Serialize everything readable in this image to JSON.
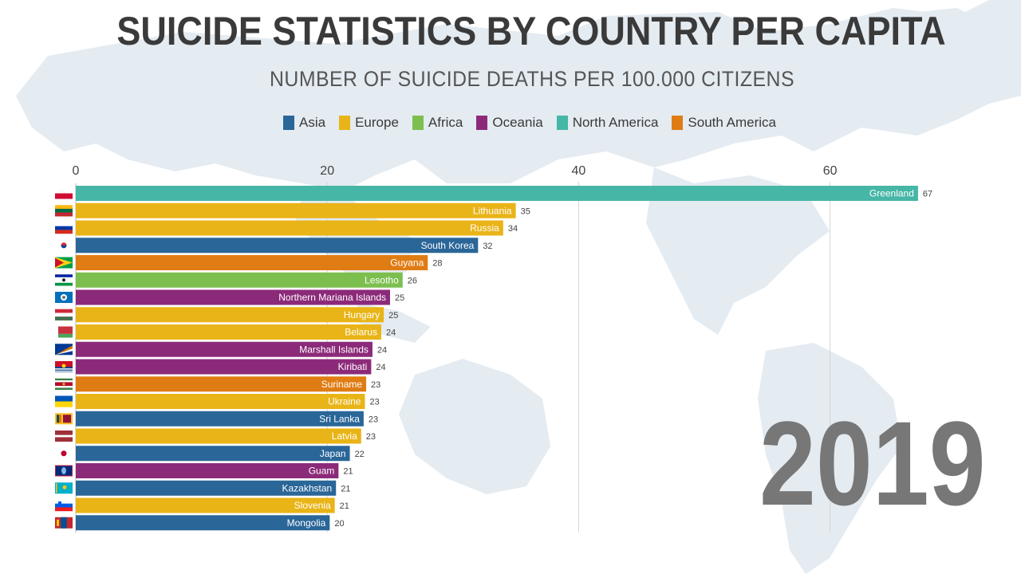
{
  "title": "SUICIDE STATISTICS BY COUNTRY PER CAPITA",
  "subtitle": "NUMBER OF SUICIDE DEATHS PER 100.000 CITIZENS",
  "year": "2019",
  "legend": [
    {
      "label": "Asia",
      "color": "#2a6698"
    },
    {
      "label": "Europe",
      "color": "#e9b417"
    },
    {
      "label": "Africa",
      "color": "#7cbf4f"
    },
    {
      "label": "Oceania",
      "color": "#8c2a7a"
    },
    {
      "label": "North America",
      "color": "#46b6a6"
    },
    {
      "label": "South America",
      "color": "#e07c14"
    }
  ],
  "chart_data": {
    "type": "bar",
    "orientation": "horizontal",
    "xlim": [
      0,
      67
    ],
    "x_ticks": [
      0,
      20,
      40,
      60
    ],
    "grid": true,
    "bars": [
      {
        "country": "Greenland",
        "value": 67,
        "label": "67",
        "region": "North America",
        "flag": "greenland"
      },
      {
        "country": "Lithuania",
        "value": 35,
        "label": "35",
        "region": "Europe",
        "flag": "lithuania"
      },
      {
        "country": "Russia",
        "value": 34,
        "label": "34",
        "region": "Europe",
        "flag": "russia"
      },
      {
        "country": "South Korea",
        "value": 32,
        "label": "32",
        "region": "Asia",
        "flag": "south-korea"
      },
      {
        "country": "Guyana",
        "value": 28,
        "label": "28",
        "region": "South America",
        "flag": "guyana"
      },
      {
        "country": "Lesotho",
        "value": 26,
        "label": "26",
        "region": "Africa",
        "flag": "lesotho"
      },
      {
        "country": "Northern Mariana Islands",
        "value": 25,
        "label": "25",
        "region": "Oceania",
        "flag": "northern-mariana-islands"
      },
      {
        "country": "Hungary",
        "value": 24.5,
        "label": "25",
        "region": "Europe",
        "flag": "hungary"
      },
      {
        "country": "Belarus",
        "value": 24.3,
        "label": "24",
        "region": "Europe",
        "flag": "belarus"
      },
      {
        "country": "Marshall Islands",
        "value": 23.6,
        "label": "24",
        "region": "Oceania",
        "flag": "marshall-islands"
      },
      {
        "country": "Kiribati",
        "value": 23.5,
        "label": "24",
        "region": "Oceania",
        "flag": "kiribati"
      },
      {
        "country": "Suriname",
        "value": 23.1,
        "label": "23",
        "region": "South America",
        "flag": "suriname"
      },
      {
        "country": "Ukraine",
        "value": 23,
        "label": "23",
        "region": "Europe",
        "flag": "ukraine"
      },
      {
        "country": "Sri Lanka",
        "value": 22.9,
        "label": "23",
        "region": "Asia",
        "flag": "sri-lanka"
      },
      {
        "country": "Latvia",
        "value": 22.7,
        "label": "23",
        "region": "Europe",
        "flag": "latvia"
      },
      {
        "country": "Japan",
        "value": 21.8,
        "label": "22",
        "region": "Asia",
        "flag": "japan"
      },
      {
        "country": "Guam",
        "value": 20.9,
        "label": "21",
        "region": "Oceania",
        "flag": "guam"
      },
      {
        "country": "Kazakhstan",
        "value": 20.7,
        "label": "21",
        "region": "Asia",
        "flag": "kazakhstan"
      },
      {
        "country": "Slovenia",
        "value": 20.6,
        "label": "21",
        "region": "Europe",
        "flag": "slovenia"
      },
      {
        "country": "Mongolia",
        "value": 20.2,
        "label": "20",
        "region": "Asia",
        "flag": "mongolia"
      }
    ]
  }
}
